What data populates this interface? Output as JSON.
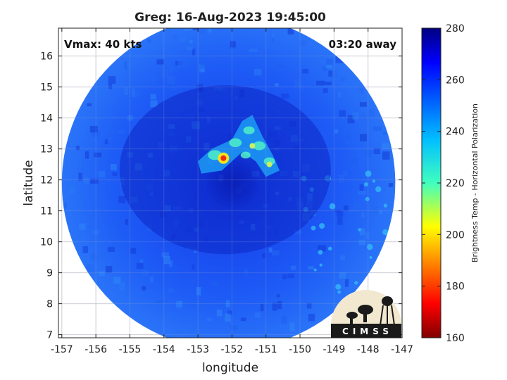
{
  "chart_data": {
    "type": "heatmap",
    "title": "Greg: 16-Aug-2023 19:45:00",
    "xlabel": "longitude",
    "ylabel": "latitude",
    "xlim": [
      -157.1,
      -147
    ],
    "ylim": [
      6.9,
      16.9
    ],
    "x_ticks": [
      -157,
      -156,
      -155,
      -154,
      -153,
      -152,
      -151,
      -150,
      -149,
      -148,
      -147
    ],
    "y_ticks": [
      7,
      8,
      9,
      10,
      11,
      12,
      13,
      14,
      15,
      16
    ],
    "grid": true,
    "annotations": {
      "top_left": "Vmax: 40 kts",
      "top_right": "03:20 away"
    },
    "swath": {
      "center_lon": -152.1,
      "center_lat": 11.9,
      "radius_deg": 4.9
    },
    "storm_center": {
      "lon": -152.2,
      "lat": 12.1
    },
    "colorbar": {
      "label": "Brightness Temp - Horizontal Polarization",
      "min": 160,
      "max": 280,
      "ticks": [
        160,
        180,
        200,
        220,
        240,
        260,
        280
      ],
      "colormap": "jet"
    },
    "features": [
      {
        "name": "warm-arc",
        "lon": -151.3,
        "lat": 13.0,
        "value": 235
      },
      {
        "name": "cold-spot",
        "lon": -152.25,
        "lat": 12.7,
        "value": 195
      }
    ]
  },
  "logo": {
    "text": "CIMSS"
  }
}
